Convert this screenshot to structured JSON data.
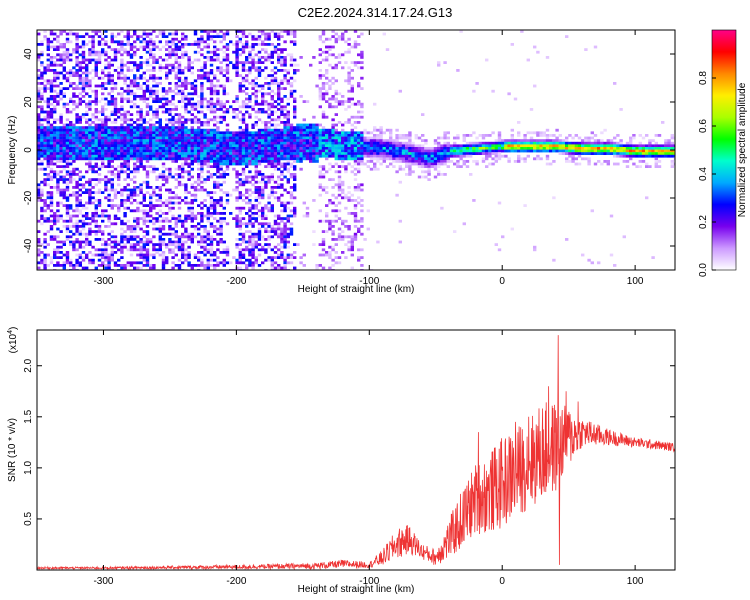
{
  "title": "C2E2.2024.314.17.24.G13",
  "chart_data": [
    {
      "type": "heatmap",
      "name": "spectrogram",
      "xlabel": "Height of straight line (km)",
      "ylabel": "Frequency (Hz)",
      "xlim": [
        -350,
        130
      ],
      "ylim": [
        -50,
        50
      ],
      "xticks": [
        -300,
        -200,
        -100,
        0,
        100
      ],
      "yticks": [
        -40,
        -20,
        0,
        20,
        40
      ],
      "colorbar": {
        "label": "Normalized spectral amplitude",
        "range": [
          0,
          1
        ],
        "ticks": [
          0.0,
          0.2,
          0.4,
          0.6,
          0.8
        ],
        "tick_labels": [
          "0.0",
          "0.2",
          "0.4",
          "0.6",
          "0.8"
        ],
        "colors": [
          "#ffffff",
          "#cc99ff",
          "#7700ee",
          "#0000ff",
          "#00aaff",
          "#00ffcc",
          "#00ff00",
          "#aaff00",
          "#ffee00",
          "#ff8800",
          "#ff0000",
          "#ff0088"
        ]
      },
      "ridge": {
        "x": [
          -345,
          -320,
          -300,
          -280,
          -260,
          -240,
          -220,
          -205,
          -180,
          -150,
          -130,
          -110,
          -90,
          -70,
          -55,
          -40,
          -20,
          0,
          20,
          40,
          60,
          80,
          100,
          130
        ],
        "y": [
          4,
          3,
          3,
          4,
          3,
          3,
          2,
          1,
          2,
          4,
          3,
          2,
          1,
          -1,
          -3,
          0,
          1,
          2,
          2,
          2,
          1,
          1,
          0,
          0
        ]
      }
    },
    {
      "type": "line",
      "name": "snr",
      "xlabel": "Height of straight line (km)",
      "ylabel": "SNR (10 * v/v)",
      "multiplier": "(x10",
      "multiplier_exp": "4",
      "multiplier_close": ")",
      "xlim": [
        -350,
        130
      ],
      "ylim": [
        0,
        2.35
      ],
      "xticks": [
        -300,
        -200,
        -100,
        0,
        100
      ],
      "yticks": [
        0.5,
        1.0,
        1.5,
        2.0
      ],
      "ytick_labels": [
        "0.5",
        "1.0",
        "1.5",
        "2.0"
      ],
      "series": [
        {
          "color": "#ee3333",
          "envelope": {
            "x": [
              -350,
              -300,
              -200,
              -140,
              -120,
              -100,
              -90,
              -80,
              -75,
              -70,
              -60,
              -50,
              -40,
              -30,
              -20,
              -10,
              0,
              10,
              20,
              30,
              40,
              50,
              60,
              80,
              100,
              130
            ],
            "mean": [
              0.02,
              0.02,
              0.03,
              0.04,
              0.06,
              0.05,
              0.12,
              0.25,
              0.28,
              0.3,
              0.18,
              0.12,
              0.3,
              0.5,
              0.7,
              0.75,
              0.85,
              0.95,
              1.05,
              1.15,
              1.2,
              1.3,
              1.35,
              1.3,
              1.25,
              1.2
            ],
            "amp": [
              0.01,
              0.01,
              0.02,
              0.03,
              0.04,
              0.03,
              0.08,
              0.14,
              0.16,
              0.14,
              0.08,
              0.08,
              0.2,
              0.3,
              0.35,
              0.4,
              0.45,
              0.45,
              0.45,
              0.5,
              0.45,
              0.3,
              0.15,
              0.08,
              0.05,
              0.04
            ]
          },
          "peaks": [
            {
              "x": 42,
              "y": 2.3
            },
            {
              "x": 35,
              "y": 1.8
            },
            {
              "x": 48,
              "y": 1.75
            },
            {
              "x": -18,
              "y": 1.35
            },
            {
              "x": 20,
              "y": 1.5
            },
            {
              "x": 10,
              "y": 1.45
            },
            {
              "x": 57,
              "y": 1.65
            },
            {
              "x": 43,
              "y": 0.05
            }
          ]
        }
      ]
    }
  ]
}
